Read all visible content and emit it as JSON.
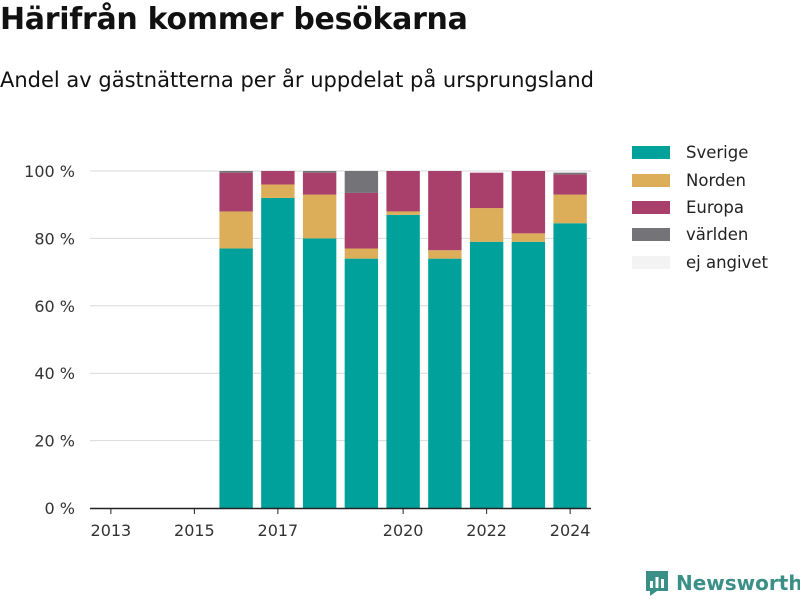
{
  "header": {
    "title": "Härifrån kommer besökarna",
    "subtitle": "Andel av gästnätterna per år uppdelat på ursprungsland"
  },
  "brand": {
    "name": "Newsworthy",
    "icon": "newsworthy-logo-icon",
    "color": "#3a8f86"
  },
  "chart_data": {
    "type": "bar",
    "stacked": true,
    "categories": [
      "2013",
      "2014",
      "2015",
      "2016",
      "2017",
      "2018",
      "2019",
      "2020",
      "2021",
      "2022",
      "2023",
      "2024"
    ],
    "x_tick_labels": [
      "2013",
      "2015",
      "2017",
      "2020",
      "2022",
      "2024"
    ],
    "ylim": [
      0,
      100
    ],
    "y_ticks": [
      0,
      20,
      40,
      60,
      80,
      100
    ],
    "y_tick_labels": [
      "0 %",
      "20 %",
      "40 %",
      "60 %",
      "80 %",
      "100 %"
    ],
    "grid": true,
    "legend_position": "right",
    "series": [
      {
        "name": "Sverige",
        "color": "#00a19a",
        "values": [
          null,
          null,
          null,
          77,
          92,
          80,
          74,
          87,
          74,
          79,
          79,
          84.5
        ]
      },
      {
        "name": "Norden",
        "color": "#dcae5a",
        "values": [
          null,
          null,
          null,
          11,
          4,
          13,
          3,
          1,
          2.5,
          10,
          2.5,
          8.5
        ]
      },
      {
        "name": "Europa",
        "color": "#a93f6b",
        "values": [
          null,
          null,
          null,
          11.5,
          4,
          6.5,
          16.5,
          12,
          23.5,
          10.5,
          18.5,
          6
        ]
      },
      {
        "name": "världen",
        "color": "#737378",
        "values": [
          null,
          null,
          null,
          0.5,
          0,
          0.5,
          6.5,
          0,
          0,
          0,
          0,
          0.5
        ]
      },
      {
        "name": "ej angivet",
        "color": "#f3f3f3",
        "values": [
          null,
          null,
          null,
          0,
          0,
          0,
          0,
          0,
          0,
          0,
          0,
          0
        ]
      }
    ]
  }
}
